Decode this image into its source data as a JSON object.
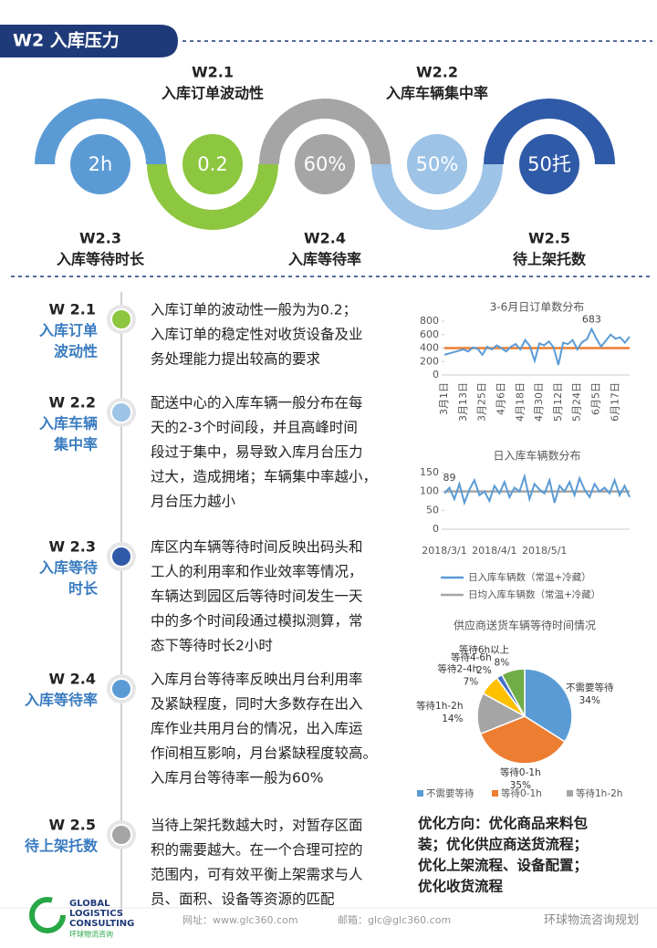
{
  "header": {
    "title": "W2 入库压力"
  },
  "rings": [
    {
      "code": "W2.3",
      "name": "入库等待时长",
      "value": "2h",
      "color": "#5b9bd5"
    },
    {
      "code": "W2.1",
      "name": "入库订单波动性",
      "value": "0.2",
      "color": "#8dc63f"
    },
    {
      "code": "W2.4",
      "name": "入库等待率",
      "value": "60%",
      "color": "#a5a5a5"
    },
    {
      "code": "W2.2",
      "name": "入库车辆集中率",
      "value": "50%",
      "color": "#9dc3e6"
    },
    {
      "code": "W2.5",
      "name": "待上架托数",
      "value": "50托",
      "color": "#2f5aa8"
    }
  ],
  "items": [
    {
      "code": "W 2.1",
      "name": [
        "入库订单",
        "波动性"
      ],
      "color": "#8dc63f",
      "text": [
        "入库订单的波动性一般为为0.2；",
        "入库订单的稳定性对收货设备及业",
        "务处理能力提出较高的要求"
      ]
    },
    {
      "code": "W 2.2",
      "name": [
        "入库车辆",
        "集中率"
      ],
      "color": "#9dc3e6",
      "text": [
        "配送中心的入库车辆一般分布在每",
        "天的2-3个时间段，并且高峰时间",
        "段过于集中，易导致入库月台压力",
        "过大，造成拥堵；车辆集中率越小，",
        "月台压力越小"
      ]
    },
    {
      "code": "W 2.3",
      "name": [
        "入库等待",
        "时长"
      ],
      "color": "#2f5aa8",
      "text": [
        "库区内车辆等待时间反映出码头和",
        "工人的利用率和作业效率等情况，",
        "车辆达到园区后等待时间发生一天",
        "中的多个时间段通过模拟测算，常",
        "态下等待时长2小时"
      ]
    },
    {
      "code": "W 2.4",
      "name": [
        "入库等待率"
      ],
      "color": "#5b9bd5",
      "text": [
        "入库月台等待率反映出月台利用率",
        "及紧缺程度，同时大多数存在出入",
        "库作业共用月台的情况，出入库运",
        "作间相互影响，月台紧缺程度较高。",
        "入库月台等待率一般为60%"
      ]
    },
    {
      "code": "W 2.5",
      "name": [
        "待上架托数"
      ],
      "color": "#a5a5a5",
      "text": [
        "当待上架托数越大时，对暂存区面",
        "积的需要越大。在一个合理可控的",
        "范围内，可有效平衡上架需求与人",
        "员、面积、设备等资源的匹配"
      ]
    }
  ],
  "optimization": [
    "优化方向：优化商品来料包",
    "装；优化供应商送货流程；",
    "优化上架流程、设备配置；",
    "优化收货流程"
  ],
  "footer": {
    "logo": [
      "GLOBAL",
      "LOGISTICS",
      "CONSULTING"
    ],
    "logo_cn": "环球物流咨询",
    "website": "网址：www.glc360.com",
    "email": "邮箱：glc@glc360.com",
    "watermark": "环球物流咨询规划"
  },
  "chart_data": [
    {
      "type": "line",
      "title": "3-6月日订单数分布",
      "categories": [
        "3月1日",
        null,
        null,
        null,
        "3月13日",
        null,
        null,
        null,
        "3月25日",
        null,
        null,
        null,
        "4月6日",
        null,
        null,
        null,
        "4月18日",
        null,
        null,
        null,
        "4月30日",
        null,
        null,
        null,
        "5月12日",
        null,
        null,
        null,
        "5月24日",
        null,
        null,
        null,
        "6月5日",
        null,
        null,
        null,
        "6月17日",
        null,
        null,
        null
      ],
      "series": [
        {
          "color": "#5b9bd5",
          "values": [
            300,
            320,
            340,
            360,
            380,
            350,
            410,
            390,
            300,
            420,
            380,
            440,
            400,
            350,
            420,
            460,
            380,
            520,
            430,
            210,
            470,
            440,
            500,
            410,
            150,
            480,
            460,
            520,
            380,
            490,
            530,
            683,
            540,
            420,
            510,
            600,
            540,
            560,
            480,
            570
          ]
        }
      ],
      "reference_line": {
        "value": 400,
        "color": "#ed7d31"
      },
      "peak_label": "683",
      "ylim": [
        0,
        800
      ],
      "yticks": [
        0,
        200,
        400,
        600,
        800
      ]
    },
    {
      "type": "line",
      "title": "日入库车辆数分布",
      "categories": [
        "2018/3/1",
        null,
        null,
        null,
        null,
        null,
        null,
        null,
        null,
        null,
        "2018/4/1",
        null,
        null,
        null,
        null,
        null,
        null,
        null,
        null,
        null,
        "2018/5/1",
        null,
        null,
        null,
        null,
        null,
        null,
        null,
        null,
        null,
        null,
        null,
        null,
        null,
        null,
        null,
        null,
        null
      ],
      "series": [
        {
          "name": "日入库车辆数（常温+冷藏）",
          "color": "#5b9bd5",
          "values": [
            95,
            110,
            80,
            120,
            70,
            105,
            130,
            90,
            100,
            75,
            115,
            95,
            125,
            85,
            110,
            100,
            140,
            80,
            120,
            105,
            95,
            130,
            70,
            115,
            100,
            125,
            90,
            135,
            105,
            85,
            120,
            100,
            110,
            95,
            130,
            90,
            115,
            85
          ]
        }
      ],
      "reference_line": {
        "name": "日均入库车辆数（常温+冷藏）",
        "value": 100,
        "color": "#a5a5a5"
      },
      "annotation": "89",
      "ylim": [
        0,
        150
      ],
      "yticks": [
        0,
        50,
        100,
        150
      ]
    },
    {
      "type": "pie",
      "title": "供应商送货车辆等待时间情况",
      "categories": [
        "不需要等待",
        "等待0-1h",
        "等待1h-2h",
        "等待2-4h",
        "等待4-6h",
        "等待6h以上"
      ],
      "values": [
        34,
        35,
        14,
        7,
        2,
        8
      ],
      "value_labels": [
        "34%",
        "35%",
        "14%",
        "7%",
        "2%",
        "8%"
      ],
      "colors": [
        "#5b9bd5",
        "#ed7d31",
        "#a5a5a5",
        "#ffc000",
        "#4472c4",
        "#70ad47"
      ],
      "legend_count": 3
    }
  ]
}
